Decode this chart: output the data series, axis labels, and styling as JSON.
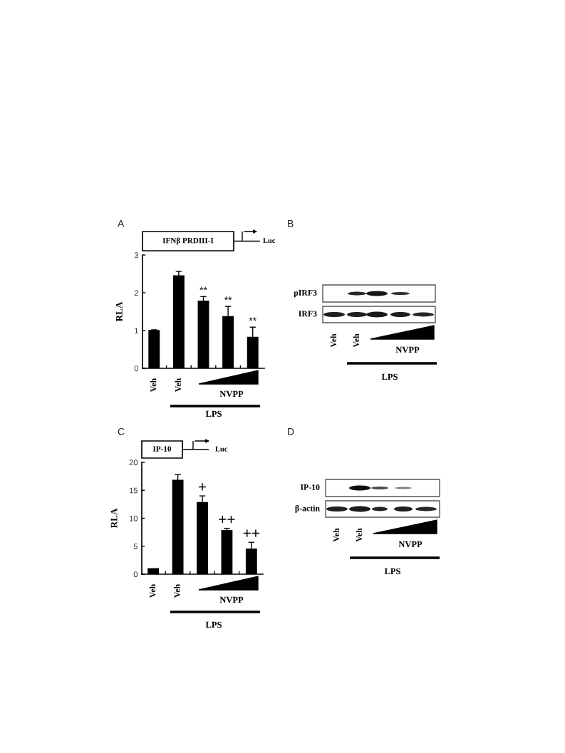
{
  "chart_data": [
    {
      "type": "bar",
      "title": "A",
      "subtitle": "IFNβ PRDIII-I",
      "ylabel": "RLA",
      "categories": [
        "Veh",
        "Veh",
        null,
        null,
        null
      ],
      "values": [
        1.0,
        2.45,
        1.78,
        1.37,
        0.82
      ],
      "errors": [
        0.02,
        0.12,
        0.12,
        0.27,
        0.27
      ],
      "color": "#000000",
      "ylim": [
        0,
        3
      ],
      "yticks": [
        0,
        1,
        2,
        3
      ],
      "annotations": [
        "Luc",
        "NVPP",
        "LPS",
        {
          "text": "**",
          "y": 1.9
        },
        {
          "text": "**",
          "y": 1.64
        },
        {
          "text": "**",
          "y": 1.09
        }
      ]
    },
    {
      "type": "other",
      "title": "B",
      "annotations": [
        "pIRF3",
        "IRF3",
        "Veh",
        "Veh",
        "NVPP",
        "LPS"
      ]
    },
    {
      "type": "bar",
      "title": "C",
      "subtitle": "IP-10",
      "ylabel": "RLA",
      "categories": [
        "Veh",
        "Veh",
        null,
        null,
        null
      ],
      "values": [
        1.0,
        16.8,
        12.8,
        7.8,
        4.5
      ],
      "errors": [
        null,
        1.0,
        1.2,
        0.4,
        1.2
      ],
      "color": "#000000",
      "ylim": [
        0,
        20
      ],
      "yticks": [
        0,
        5,
        10,
        15,
        20
      ],
      "annotations": [
        "Luc",
        "NVPP",
        "LPS",
        {
          "text": "+",
          "y": 14.0
        },
        {
          "text": "++",
          "y": 8.2
        },
        {
          "text": "++",
          "y": 5.7
        }
      ]
    },
    {
      "type": "other",
      "title": "D",
      "annotations": [
        "IP-10",
        "β-actin",
        "Veh",
        "Veh",
        "NVPP",
        "LPS"
      ]
    }
  ]
}
